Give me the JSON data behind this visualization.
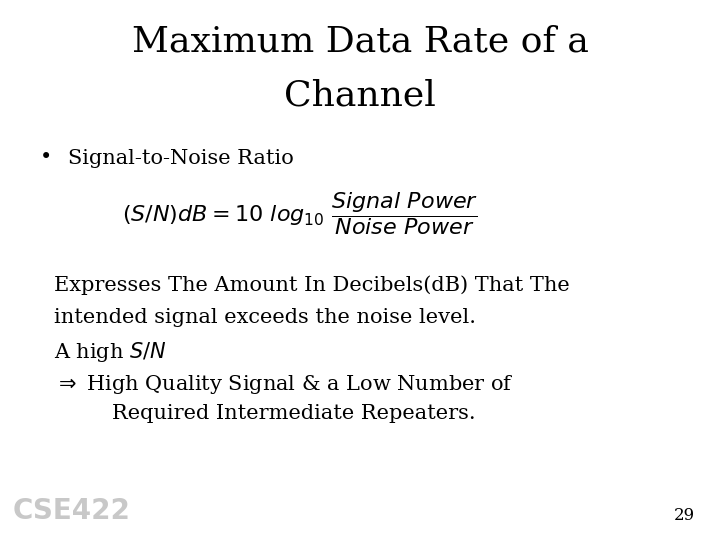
{
  "title_line1": "Maximum Data Rate of a",
  "title_line2": "Channel",
  "title_fontsize": 26,
  "body_fontsize": 15,
  "formula_fontsize": 15,
  "background_color": "#ffffff",
  "text_color": "#000000",
  "slide_number": "29",
  "watermark": "CSE422",
  "watermark_color": "#c8c8c8"
}
